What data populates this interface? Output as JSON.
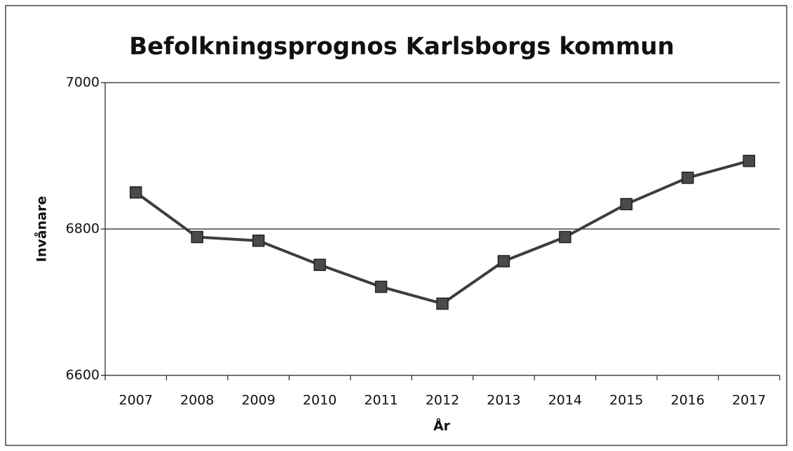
{
  "chart_data": {
    "type": "line",
    "title": "Befolkningsprognos Karlsborgs kommun",
    "x_label": "År",
    "y_label": "Invånare",
    "categories": [
      "2007",
      "2008",
      "2009",
      "2010",
      "2011",
      "2012",
      "2013",
      "2014",
      "2015",
      "2016",
      "2017"
    ],
    "values": [
      6850,
      6789,
      6784,
      6751,
      6721,
      6698,
      6756,
      6789,
      6834,
      6870,
      6893
    ],
    "color": "#3d3d3d",
    "ylim": [
      6600,
      7000
    ],
    "yticks": [
      6600,
      6800,
      7000
    ],
    "grid": true
  }
}
